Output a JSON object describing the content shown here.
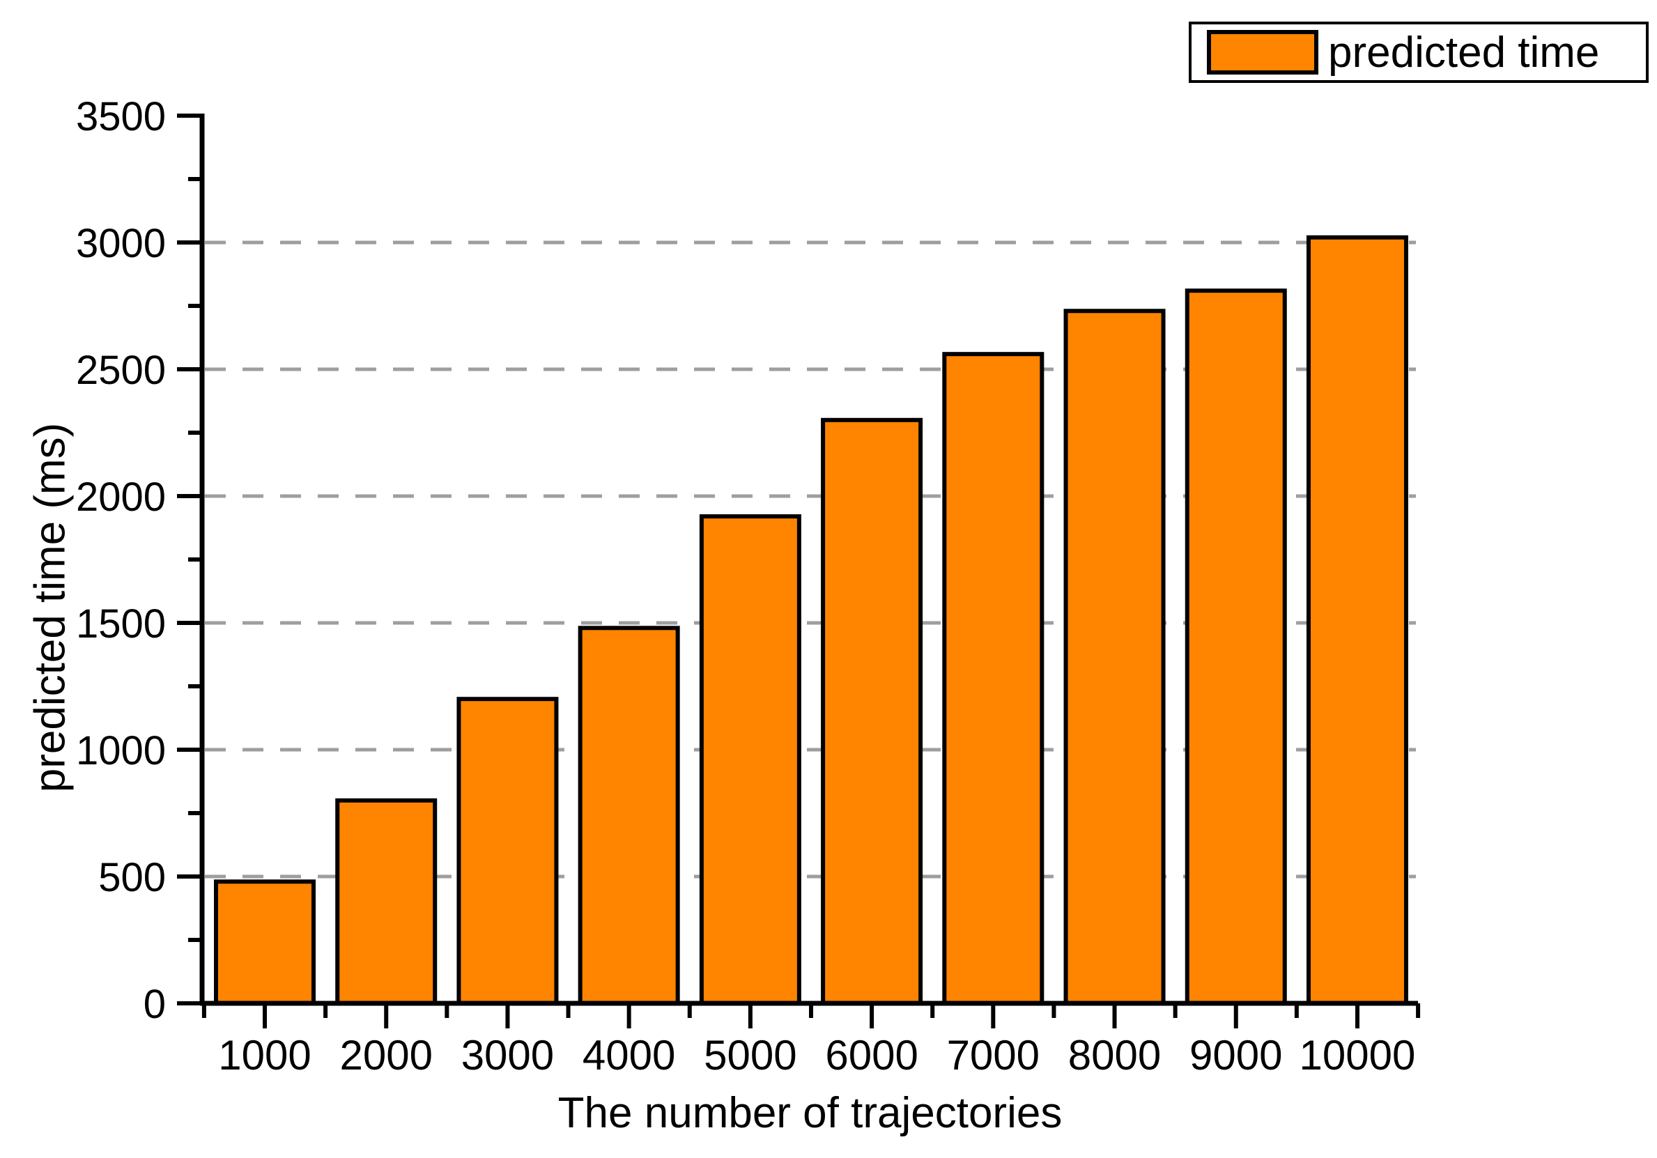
{
  "figure": {
    "xlabel": "The number of trajectories",
    "ylabel": "predicted time (ms)",
    "legend": {
      "label": "predicted time"
    }
  },
  "colors": {
    "bar_fill": "#FF8400",
    "bar_stroke": "#000000",
    "axis": "#000000",
    "grid": "#9E9E9E",
    "background": "#FFFFFF"
  },
  "chart_data": {
    "type": "bar",
    "title": "",
    "xlabel": "The number of trajectories",
    "ylabel": "predicted time (ms)",
    "categories": [
      "1000",
      "2000",
      "3000",
      "4000",
      "5000",
      "6000",
      "7000",
      "8000",
      "9000",
      "10000"
    ],
    "series": [
      {
        "name": "predicted time",
        "values": [
          480,
          800,
          1200,
          1480,
          1920,
          2300,
          2560,
          2730,
          2810,
          3020
        ]
      }
    ],
    "ylim": [
      0,
      3500
    ],
    "y_major_ticks": [
      0,
      500,
      1000,
      1500,
      2000,
      2500,
      3000,
      3500
    ],
    "y_minor_ticks": [
      250,
      750,
      1250,
      1750,
      2250,
      2750,
      3250
    ],
    "grid": "horizontal dashed at y major ticks 500-3000",
    "legend_position": "top-right"
  }
}
